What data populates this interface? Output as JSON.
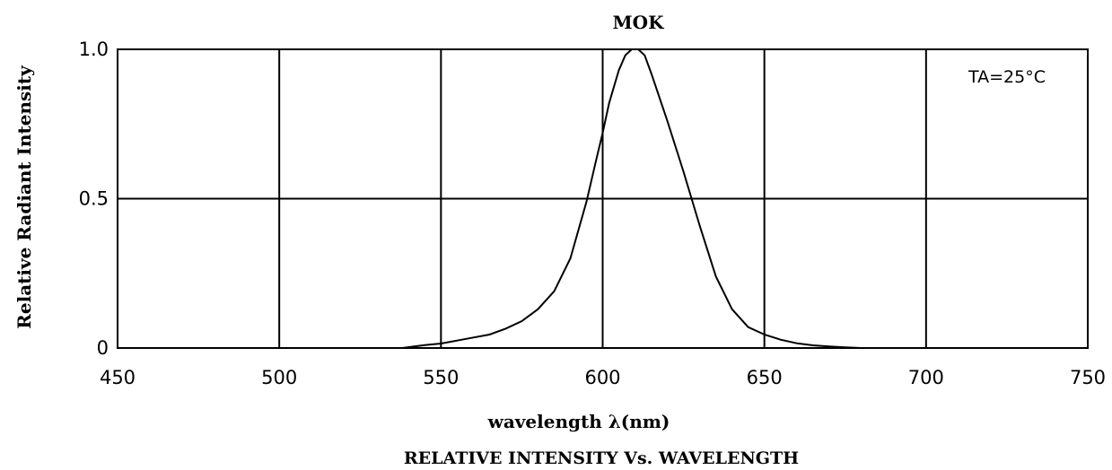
{
  "chart_data": {
    "type": "line",
    "title": "MOK",
    "caption": "RELATIVE INTENSITY Vs. WAVELENGTH",
    "xlabel": "wavelength λ(nm)",
    "ylabel": "Relative Radiant Intensity",
    "annotation": "TA=25°C",
    "xlim": [
      450,
      750
    ],
    "ylim": [
      0,
      1.0
    ],
    "x_ticks": [
      450,
      500,
      550,
      600,
      650,
      700,
      750
    ],
    "x_tick_labels": [
      "450",
      "500",
      "550",
      "600",
      "650",
      "700",
      "750"
    ],
    "y_ticks": [
      0,
      0.5,
      1.0
    ],
    "y_tick_labels": [
      "0",
      "0.5",
      "1.0"
    ],
    "grid": true,
    "series": [
      {
        "x": [
          538,
          545,
          550,
          555,
          560,
          565,
          570,
          575,
          580,
          585,
          590,
          595,
          598,
          600,
          602,
          605,
          607,
          609,
          611,
          613,
          615,
          620,
          625,
          630,
          635,
          640,
          645,
          650,
          655,
          660,
          665,
          670,
          675,
          680
        ],
        "y": [
          0.0,
          0.01,
          0.015,
          0.025,
          0.035,
          0.045,
          0.065,
          0.09,
          0.13,
          0.19,
          0.3,
          0.49,
          0.63,
          0.72,
          0.82,
          0.93,
          0.98,
          1.0,
          1.0,
          0.98,
          0.92,
          0.76,
          0.59,
          0.41,
          0.24,
          0.13,
          0.07,
          0.045,
          0.028,
          0.016,
          0.009,
          0.005,
          0.002,
          0.0
        ]
      }
    ]
  }
}
